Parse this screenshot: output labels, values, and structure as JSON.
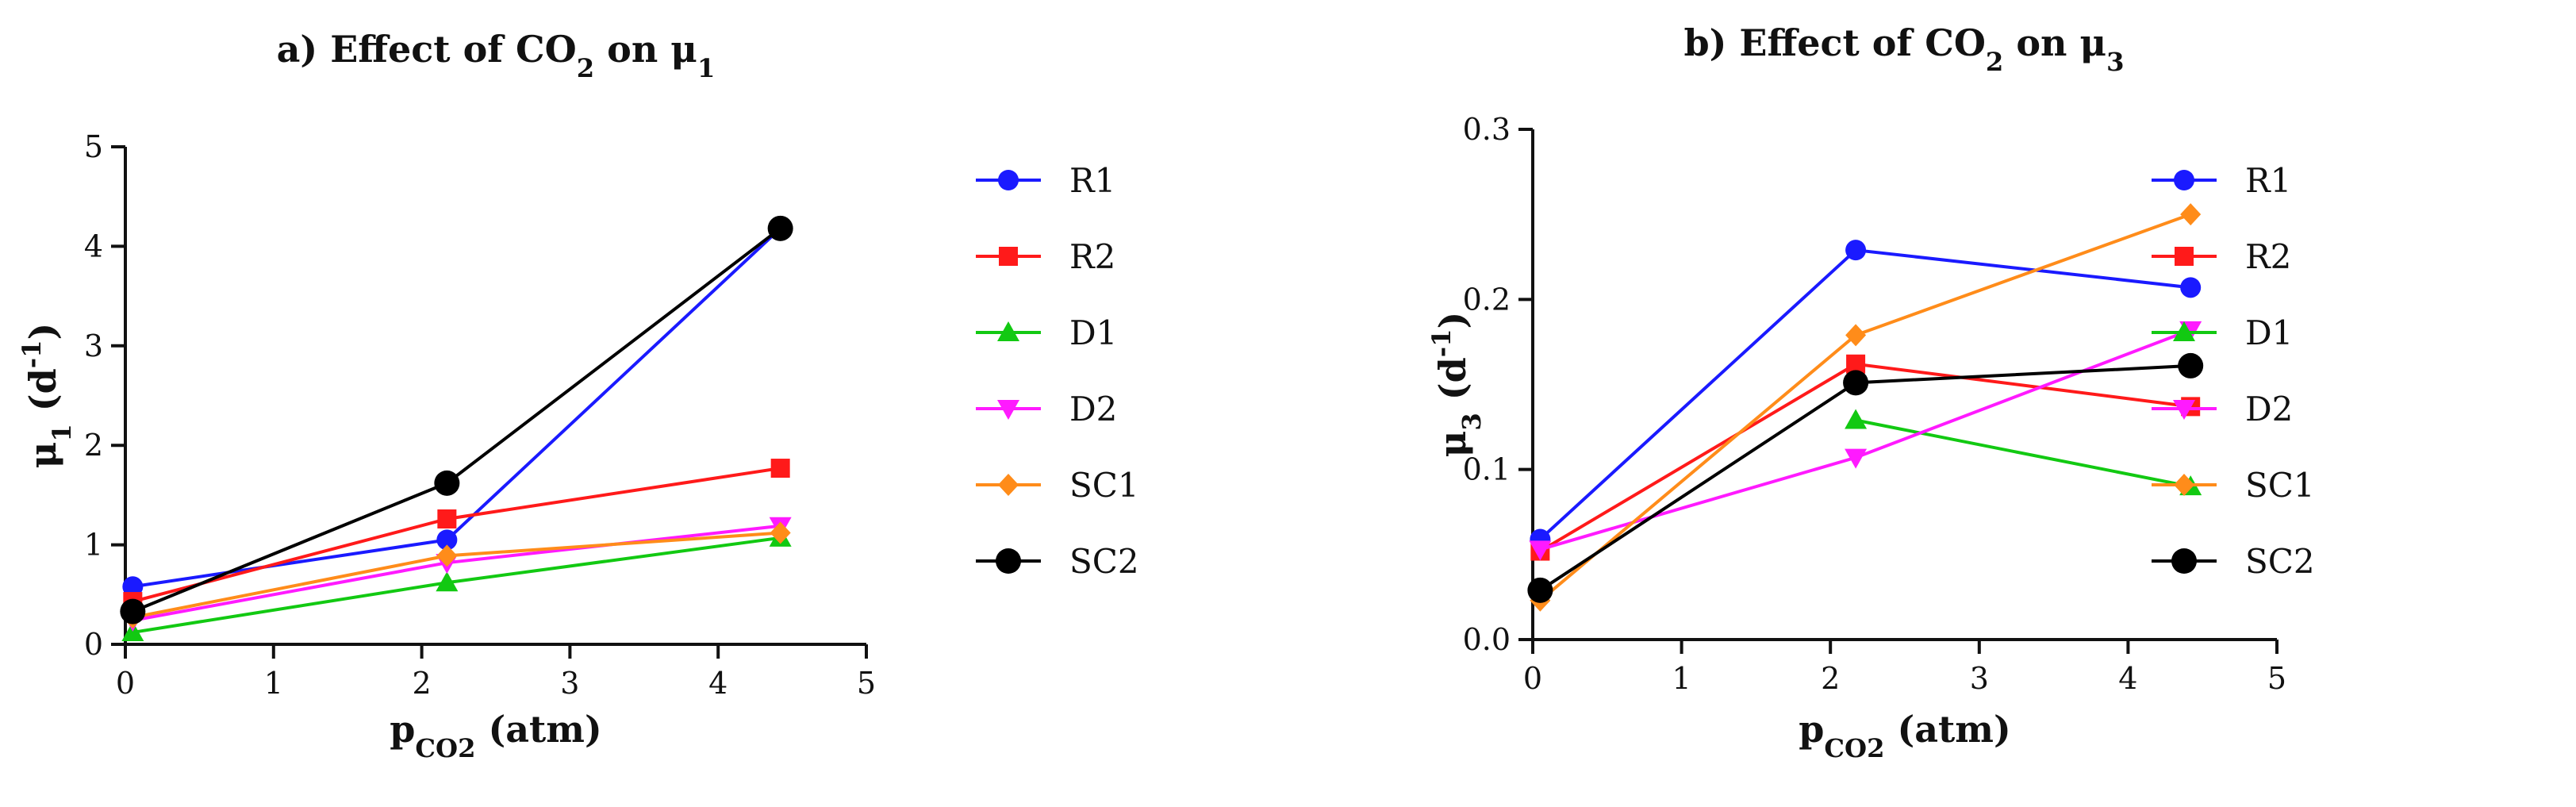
{
  "chart_data": [
    {
      "type": "line",
      "title": "a) Effect of CO₂ on μ₁",
      "title_parts": [
        {
          "text": "a) Effect of CO"
        },
        {
          "text": "2",
          "sub": true
        },
        {
          "text": " on μ"
        },
        {
          "text": "1",
          "sub": true
        }
      ],
      "xlabel": "p",
      "xlabel_sub": "CO2",
      "xlabel_suffix": " (atm)",
      "ylabel": "μ",
      "ylabel_sub": "1",
      "ylabel_suffix": " (d",
      "ylabel_sup": "-1",
      "ylabel_close": ")",
      "xlim": [
        0,
        5
      ],
      "ylim": [
        0,
        5
      ],
      "xticks": [
        0,
        1,
        2,
        3,
        4,
        5
      ],
      "yticks": [
        0,
        1,
        2,
        3,
        4,
        5
      ],
      "x": [
        0.05,
        2.17,
        4.42
      ],
      "series": [
        {
          "name": "R1",
          "values": [
            0.58,
            1.05,
            4.18
          ]
        },
        {
          "name": "R2",
          "values": [
            0.43,
            1.26,
            1.77
          ]
        },
        {
          "name": "D1",
          "values": [
            0.12,
            0.62,
            1.07
          ]
        },
        {
          "name": "D2",
          "values": [
            0.24,
            0.82,
            1.19
          ]
        },
        {
          "name": "SC1",
          "values": [
            0.27,
            0.89,
            1.12
          ]
        },
        {
          "name": "SC2",
          "values": [
            0.33,
            1.62,
            4.18
          ]
        }
      ]
    },
    {
      "type": "line",
      "title": "b) Effect of CO₂ on μ₃",
      "title_parts": [
        {
          "text": "b) Effect of CO"
        },
        {
          "text": "2",
          "sub": true
        },
        {
          "text": " on μ"
        },
        {
          "text": "3",
          "sub": true
        }
      ],
      "xlabel": "p",
      "xlabel_sub": "CO2",
      "xlabel_suffix": " (atm)",
      "ylabel": "μ",
      "ylabel_sub": "3",
      "ylabel_suffix": " (d",
      "ylabel_sup": "-1",
      "ylabel_close": ")",
      "xlim": [
        0,
        5
      ],
      "ylim": [
        0,
        0.3
      ],
      "xticks": [
        0,
        1,
        2,
        3,
        4,
        5
      ],
      "yticks": [
        0.0,
        0.1,
        0.2,
        0.3
      ],
      "ytick_labels": [
        "0.0",
        "0.1",
        "0.2",
        "0.3"
      ],
      "x": [
        0.05,
        2.17,
        4.42
      ],
      "series": [
        {
          "name": "R1",
          "values": [
            0.059,
            0.229,
            0.207
          ]
        },
        {
          "name": "R2",
          "values": [
            0.052,
            0.162,
            0.137
          ]
        },
        {
          "name": "D1",
          "values": [
            null,
            0.129,
            0.09
          ]
        },
        {
          "name": "D2",
          "values": [
            0.053,
            0.107,
            0.182
          ]
        },
        {
          "name": "SC1",
          "values": [
            0.023,
            0.179,
            0.25
          ]
        },
        {
          "name": "SC2",
          "values": [
            0.029,
            0.151,
            0.161
          ]
        }
      ]
    }
  ],
  "legend": [
    {
      "name": "R1",
      "color": "#1a1aff",
      "marker": "circle"
    },
    {
      "name": "R2",
      "color": "#ff1a1a",
      "marker": "square"
    },
    {
      "name": "D1",
      "color": "#12c912",
      "marker": "triangle-up"
    },
    {
      "name": "D2",
      "color": "#ff1aff",
      "marker": "triangle-down"
    },
    {
      "name": "SC1",
      "color": "#ff8c1a",
      "marker": "diamond"
    },
    {
      "name": "SC2",
      "color": "#000000",
      "marker": "circle-large"
    }
  ]
}
